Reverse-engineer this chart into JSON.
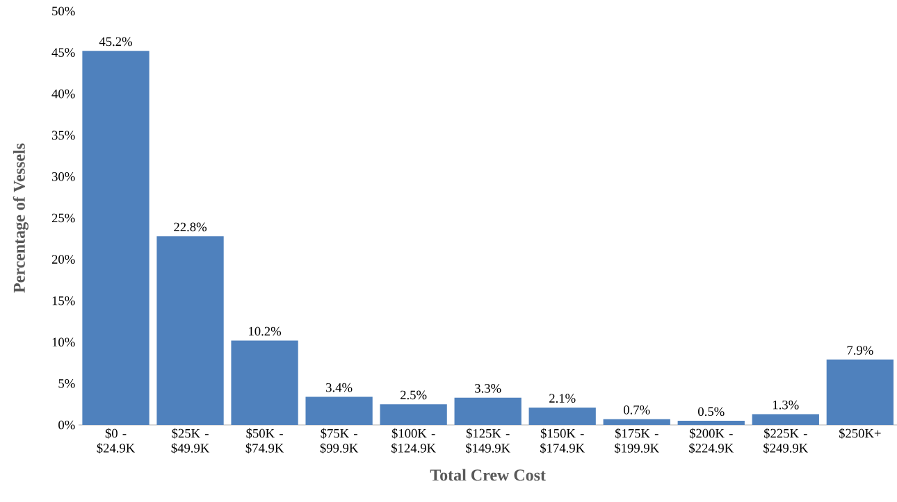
{
  "chart_data": {
    "type": "bar",
    "xlabel": "Total Crew Cost",
    "ylabel": "Percentage of Vessels",
    "categories": [
      "$0 - $24.9K",
      "$25K - $49.9K",
      "$50K - $74.9K",
      "$75K - $99.9K",
      "$100K - $124.9K",
      "$125K - $149.9K",
      "$150K - $174.9K",
      "$175K - $199.9K",
      "$200K - $224.9K",
      "$225K - $249.9K",
      "$250K+"
    ],
    "values": [
      45.2,
      22.8,
      10.2,
      3.4,
      2.5,
      3.3,
      2.1,
      0.7,
      0.5,
      1.3,
      7.9
    ],
    "value_labels": [
      "45.2%",
      "22.8%",
      "10.2%",
      "3.4%",
      "2.5%",
      "3.3%",
      "2.1%",
      "0.7%",
      "0.5%",
      "1.3%",
      "7.9%"
    ],
    "color": "#4f81bd",
    "ylim": [
      0,
      50
    ],
    "yticks": [
      {
        "value": 0,
        "label": "0%"
      },
      {
        "value": 5,
        "label": "5%"
      },
      {
        "value": 10,
        "label": "10%"
      },
      {
        "value": 15,
        "label": "15%"
      },
      {
        "value": 20,
        "label": "20%"
      },
      {
        "value": 25,
        "label": "25%"
      },
      {
        "value": 30,
        "label": "30%"
      },
      {
        "value": 35,
        "label": "35%"
      },
      {
        "value": 40,
        "label": "40%"
      },
      {
        "value": 45,
        "label": "45%"
      },
      {
        "value": 50,
        "label": "50%"
      }
    ],
    "grid": false
  }
}
